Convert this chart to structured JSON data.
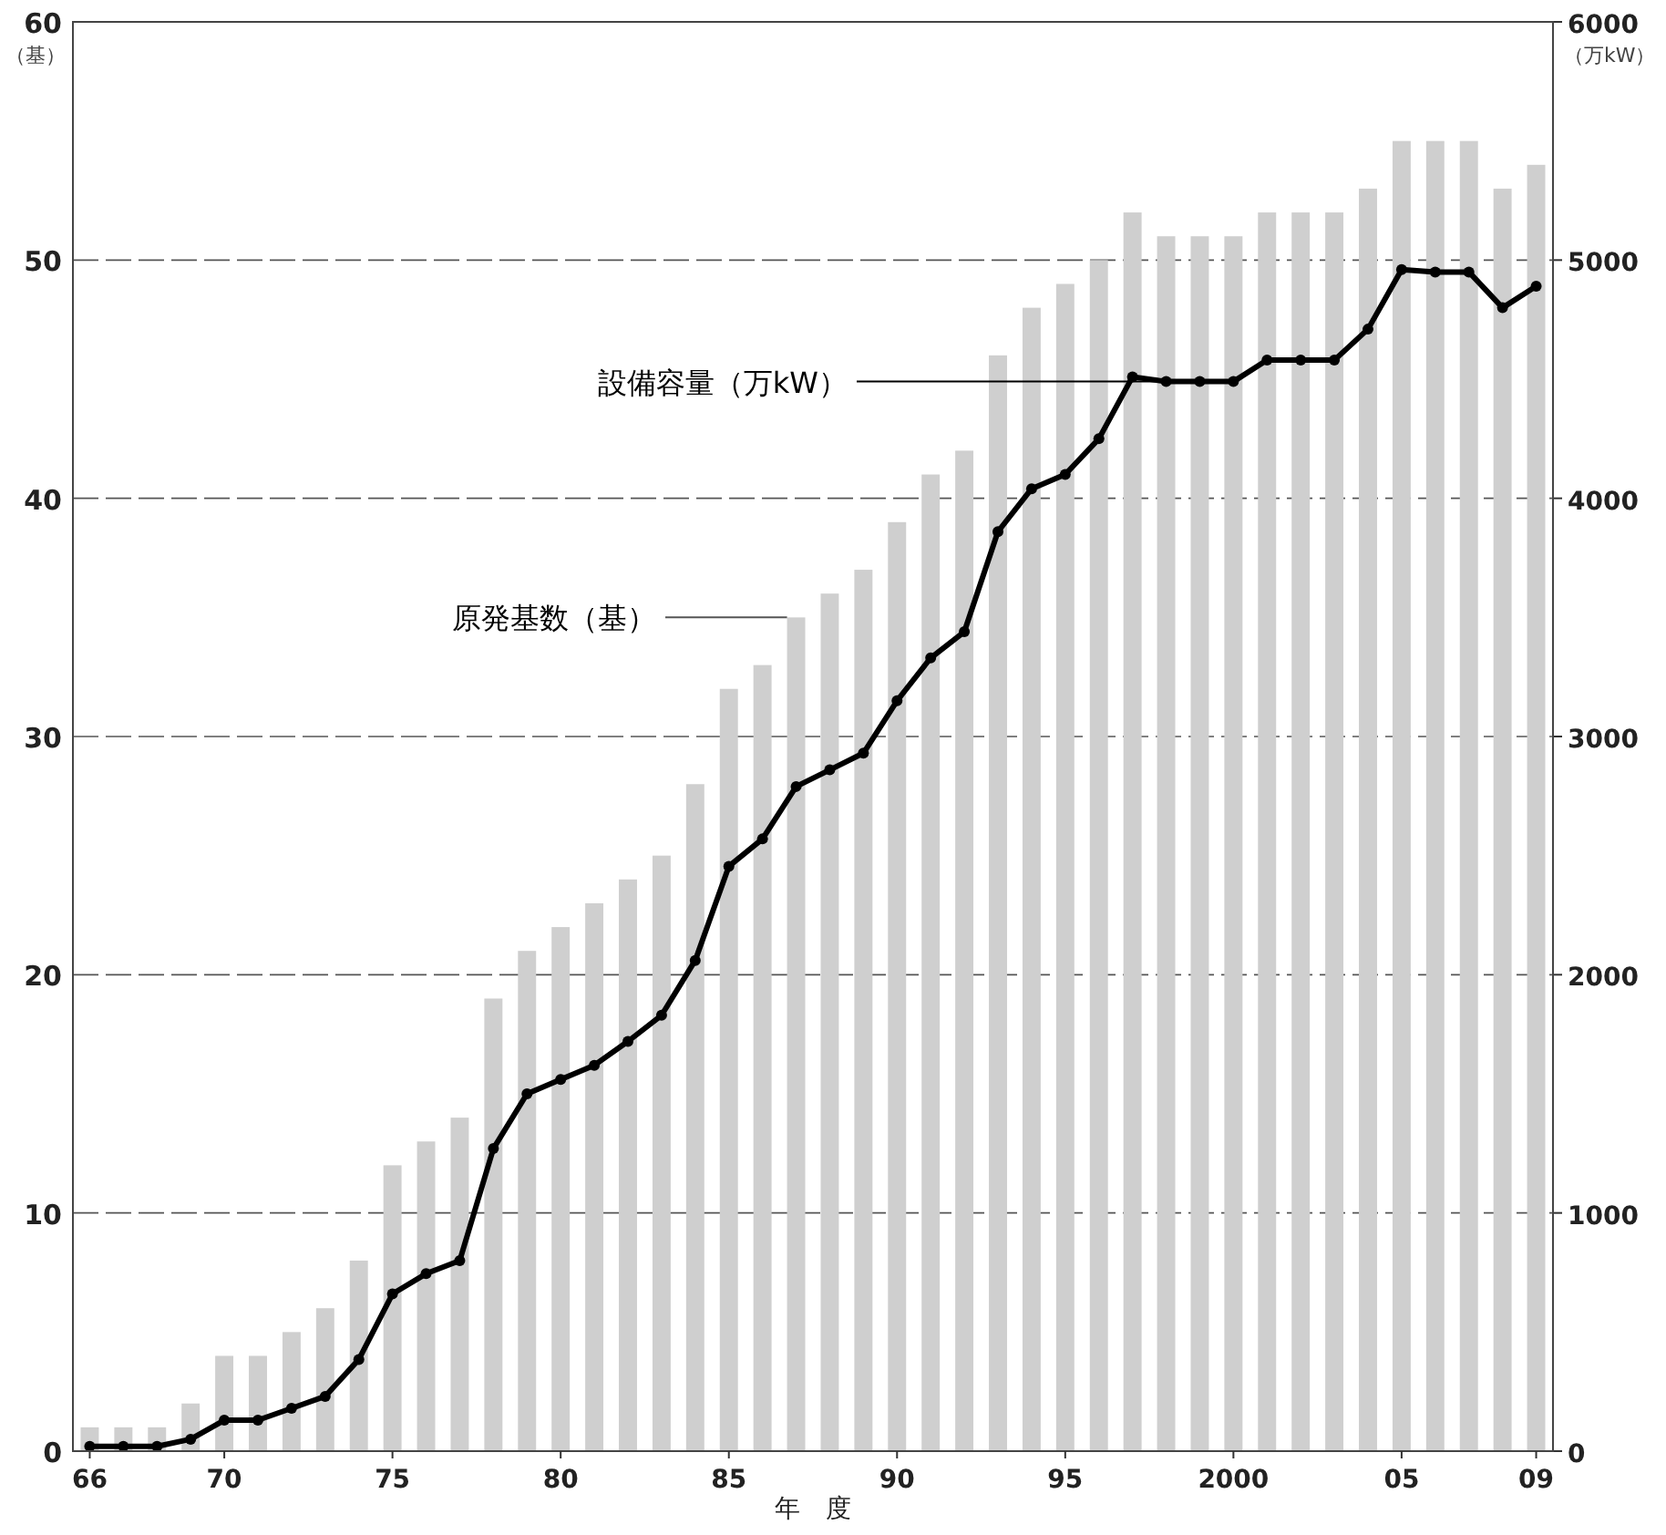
{
  "chart_data": {
    "type": "bar",
    "xlabel": "年　度",
    "ylabel": "（基）",
    "y2label": "（万kW）",
    "categories": [
      "66",
      null,
      null,
      null,
      "70",
      null,
      null,
      null,
      null,
      "75",
      null,
      null,
      null,
      null,
      "80",
      null,
      null,
      null,
      null,
      "85",
      null,
      null,
      null,
      null,
      "90",
      null,
      null,
      null,
      null,
      "95",
      null,
      null,
      null,
      null,
      "2000",
      null,
      null,
      null,
      null,
      "05",
      null,
      null,
      null,
      "09"
    ],
    "series": [
      {
        "name": "原発基数（基）",
        "color": "#cfcfcf",
        "values": [
          1,
          1,
          1,
          2,
          4,
          4,
          5,
          6,
          8,
          12,
          13,
          14,
          19,
          21,
          22,
          23,
          24,
          25,
          28,
          32,
          33,
          35,
          36,
          37,
          39,
          41,
          42,
          46,
          48,
          49,
          50,
          52,
          51,
          51,
          51,
          52,
          52,
          52,
          53,
          55,
          55,
          55,
          53,
          54
        ]
      },
      {
        "name": "設備容量（万kW）",
        "type": "line",
        "axis": "y2",
        "color": "#000000",
        "marker": "circle",
        "line_style": "solid",
        "values": [
          20,
          20,
          20,
          50,
          130,
          130,
          180,
          230,
          385,
          660,
          745,
          800,
          1270,
          1500,
          1560,
          1620,
          1720,
          1830,
          2060,
          2455,
          2570,
          2790,
          2860,
          2930,
          3150,
          3330,
          3440,
          3860,
          4040,
          4100,
          4250,
          4510,
          4490,
          4490,
          4490,
          4580,
          4580,
          4580,
          4710,
          4960,
          4950,
          4950,
          4800,
          4890
        ]
      }
    ],
    "ylim": [
      0,
      60
    ],
    "yticks": [
      0,
      10,
      20,
      30,
      40,
      50,
      60
    ],
    "y2lim": [
      0,
      6000
    ],
    "y2ticks": [
      0,
      1000,
      2000,
      3000,
      4000,
      5000,
      6000
    ],
    "grid": "y"
  }
}
